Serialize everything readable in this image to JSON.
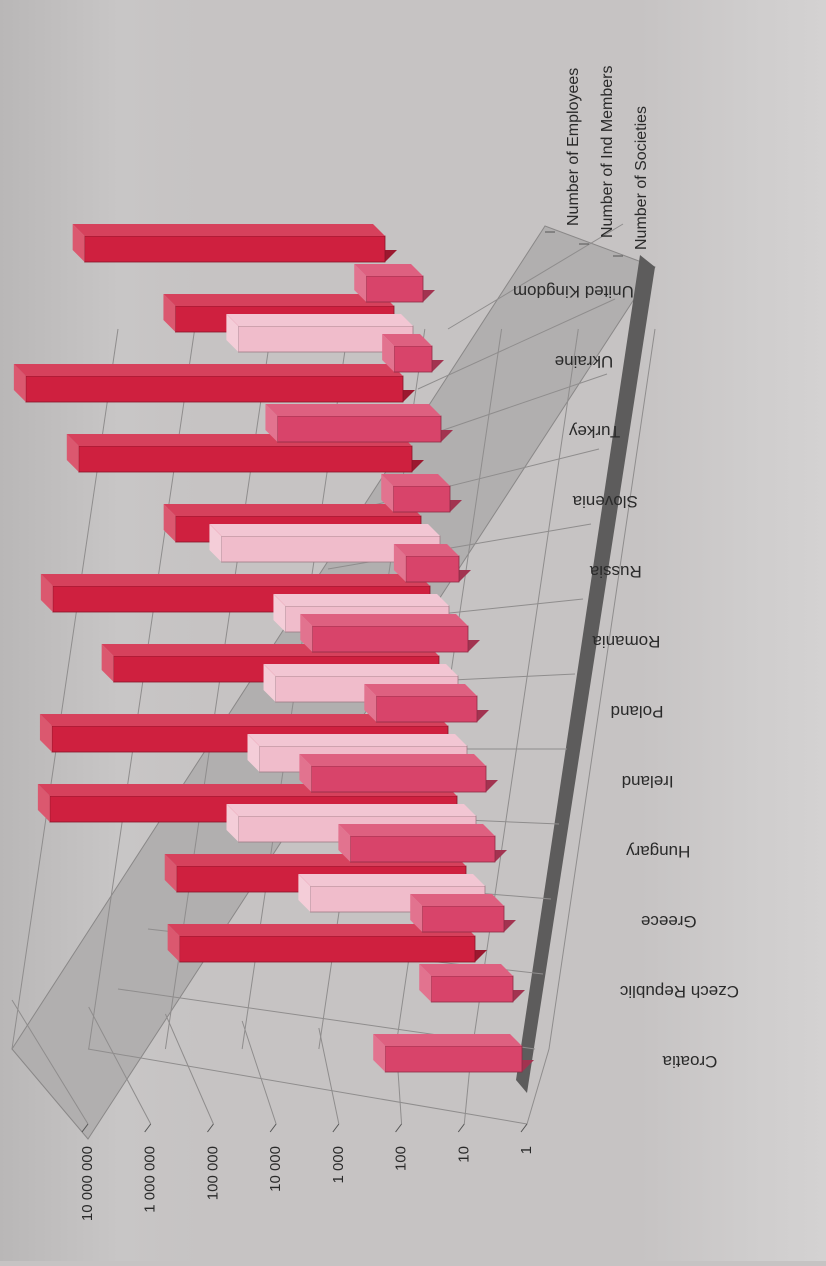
{
  "chart_data": {
    "type": "bar",
    "scale": "log",
    "ylim": [
      1,
      10000000
    ],
    "y_ticks": [
      "1",
      "10",
      "100",
      "1 000",
      "10 000",
      "100 000",
      "1 000 000",
      "10 000 000"
    ],
    "categories": [
      "Croatia",
      "Czech Republic",
      "Greece",
      "Hungary",
      "Ireland",
      "Poland",
      "Romania",
      "Russia",
      "Slovenia",
      "Turkey",
      "Ukraine",
      "United Kingdom"
    ],
    "series": [
      {
        "name": "Number of Employees",
        "values": [
          null,
          50000,
          40000,
          3000000,
          2000000,
          150000,
          1000000,
          8000,
          200000,
          1000000,
          3000,
          60000
        ]
      },
      {
        "name": "Number of Ind Members",
        "values": [
          null,
          null,
          600,
          6000,
          2000,
          800,
          400,
          3000,
          null,
          null,
          600,
          null
        ]
      },
      {
        "name": "Number of Societies",
        "values": [
          150,
          20,
          20,
          200,
          600,
          40,
          300,
          7,
          8,
          400,
          4,
          8
        ]
      }
    ],
    "colors": {
      "Number of Employees": "#cf203f",
      "Number of Ind Members": "#f0bccb",
      "Number of Societies": "#d8446a",
      "panel": "#b1afaf",
      "floor": "#5d5c5c"
    },
    "legend_position": "top-right",
    "grid": true,
    "orientation": "rotated-90"
  }
}
